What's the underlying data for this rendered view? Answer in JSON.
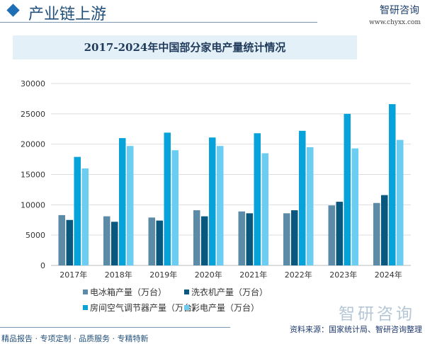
{
  "header": {
    "title": "产业链上游",
    "logo": "智研咨询",
    "url": "www.chyxx.com"
  },
  "chart_data": {
    "type": "bar",
    "title": "2017-2024年中国部分家电产量统计情况",
    "categories": [
      "2017年",
      "2018年",
      "2019年",
      "2020年",
      "2021年",
      "2022年",
      "2023年",
      "2024年"
    ],
    "ylim": [
      0,
      30000
    ],
    "yticks": [
      0,
      5000,
      10000,
      15000,
      20000,
      25000,
      30000
    ],
    "grid": true,
    "legend_position": "bottom",
    "series": [
      {
        "name": "电冰箱产量（万台）",
        "color": "#5b8ba6",
        "values": [
          8300,
          8100,
          7900,
          9100,
          8900,
          8600,
          9900,
          10300
        ]
      },
      {
        "name": "洗衣机产量（万台）",
        "color": "#08587f",
        "values": [
          7500,
          7200,
          7400,
          8100,
          8600,
          9100,
          10500,
          11600
        ]
      },
      {
        "name": "房间空气调节器产量（万台）",
        "color": "#05a3d9",
        "values": [
          17900,
          21000,
          21900,
          21100,
          21800,
          22200,
          25000,
          26600
        ]
      },
      {
        "name": "彩电产量（万台）",
        "color": "#6ccdf2",
        "values": [
          16000,
          19700,
          19000,
          19700,
          18500,
          19500,
          19300,
          20700
        ]
      }
    ]
  },
  "watermark": "智研咨询",
  "source": "资料来源：国家统计局、智研咨询整理",
  "footer": "精品报告 · 专项定制 · 品质服务 · 专精特新"
}
